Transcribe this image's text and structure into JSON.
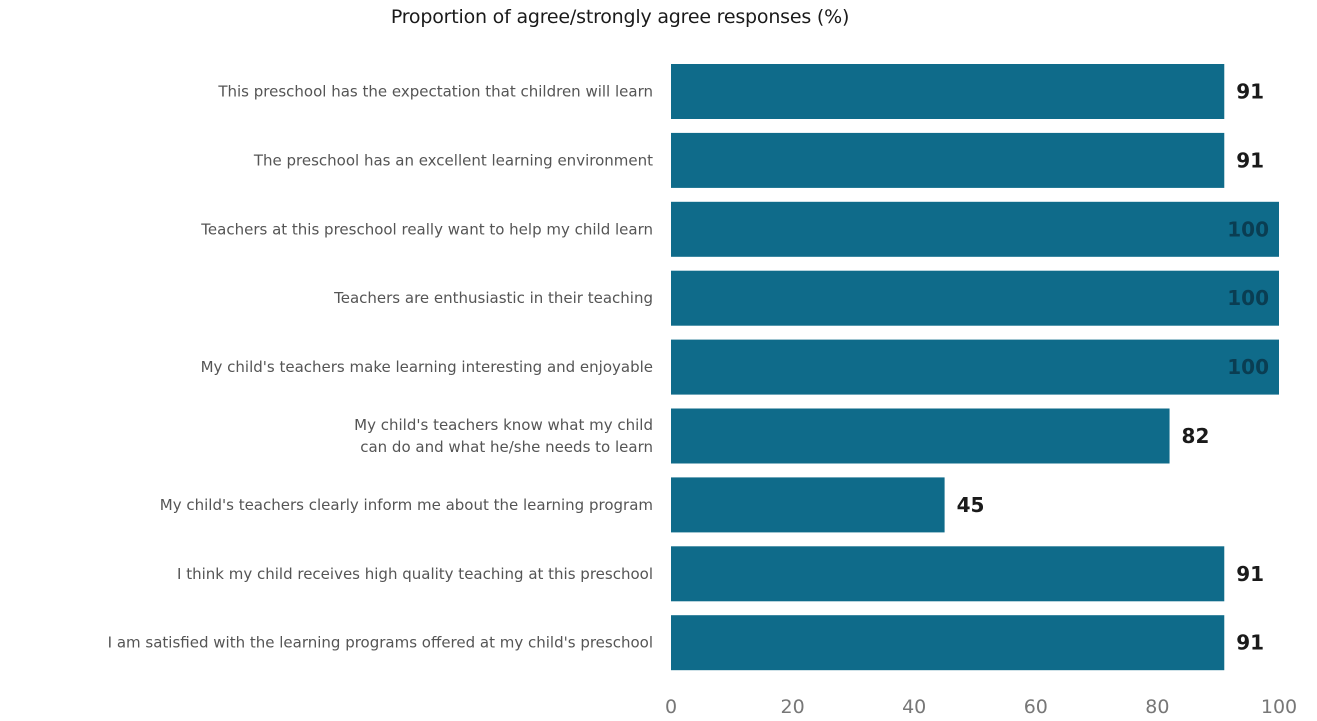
{
  "chart_data": {
    "type": "bar",
    "orientation": "horizontal",
    "title": "Proportion of agree/strongly agree responses (%)",
    "categories": [
      [
        "This preschool has the expectation that children will learn"
      ],
      [
        "The preschool has an excellent learning environment"
      ],
      [
        "Teachers at this preschool really want to help my child learn"
      ],
      [
        "Teachers are enthusiastic in their teaching"
      ],
      [
        "My child's teachers make learning interesting and enjoyable"
      ],
      [
        "My child's teachers know what my child",
        "can do and what he/she needs to learn"
      ],
      [
        "My child's teachers clearly inform me about the learning program"
      ],
      [
        "I think my child receives high quality teaching at this preschool"
      ],
      [
        "I am satisfied with the learning programs offered at my child's preschool"
      ]
    ],
    "values": [
      91,
      91,
      100,
      100,
      100,
      82,
      45,
      91,
      91
    ],
    "data_labels": [
      "91",
      "91",
      "100",
      "100",
      "100",
      "82",
      "45",
      "91",
      "91"
    ],
    "xlim": [
      0,
      100
    ],
    "xticks": [
      0,
      20,
      40,
      60,
      80,
      100
    ],
    "xtick_labels": [
      "0",
      "20",
      "40",
      "60",
      "80",
      "100"
    ],
    "xlabel": "",
    "ylabel": "",
    "grid": false,
    "legend": "none",
    "colors": {
      "bar": "#0f6b8a",
      "label_outside": "#1a1a1a",
      "label_inside": "#0a3d52"
    }
  }
}
